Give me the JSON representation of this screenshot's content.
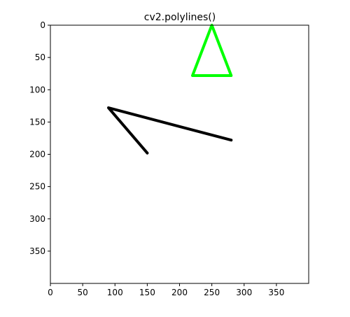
{
  "chart_data": {
    "type": "line",
    "title": "cv2.polylines()",
    "xlabel": "",
    "ylabel": "",
    "xlim": [
      0,
      400
    ],
    "ylim": [
      400,
      0
    ],
    "y_inverted": true,
    "grid": false,
    "x_ticks": [
      0,
      50,
      100,
      150,
      200,
      250,
      300,
      350
    ],
    "y_ticks": [
      0,
      50,
      100,
      150,
      200,
      250,
      300,
      350
    ],
    "series": [
      {
        "color": "#00ff00",
        "closed": true,
        "points": [
          [
            250,
            0
          ],
          [
            220,
            78
          ],
          [
            280,
            78
          ]
        ]
      },
      {
        "color": "#000000",
        "closed": false,
        "points": [
          [
            280,
            178
          ],
          [
            90,
            128
          ],
          [
            150,
            198
          ]
        ]
      }
    ]
  }
}
